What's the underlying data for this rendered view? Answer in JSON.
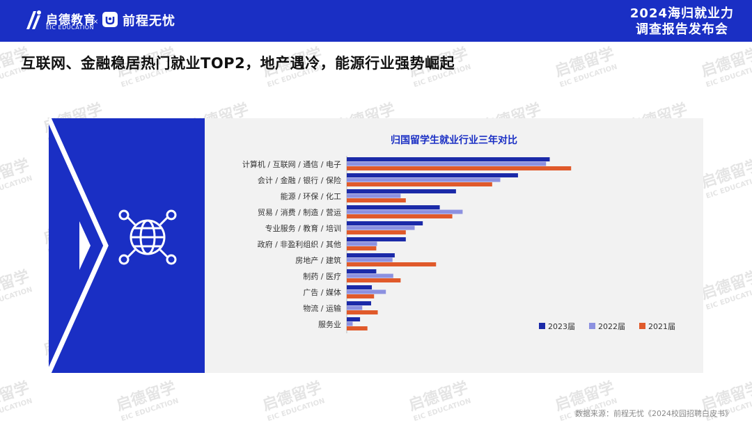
{
  "header": {
    "logo_cn": "启德教育",
    "logo_en": "EIC EDUCATION",
    "x_sep": "×",
    "partner_name": "前程无忧",
    "event_line1": "2024海归就业力",
    "event_line2": "调查报告发布会"
  },
  "headline": "互联网、金融稳居热门就业TOP2，地产遇冷，能源行业强势崛起",
  "watermark": {
    "brand": "启德留学",
    "sub": "EIC EDUCATION"
  },
  "icon": "globe-network-icon",
  "colors": {
    "brand_blue": "#1a2fc4",
    "series_2023": "#1b2aa8",
    "series_2022": "#8c91e0",
    "series_2021": "#e05a2b"
  },
  "chart_data": {
    "type": "bar",
    "orientation": "horizontal",
    "title": "归国留学生就业行业三年对比",
    "categories": [
      "计算机 / 互联网 / 通信 / 电子",
      "会计 / 金融 / 银行 / 保险",
      "能源 / 环保 / 化工",
      "贸易 / 消费 / 制造 / 营运",
      "专业服务 / 教育 / 培训",
      "政府 / 非盈利组织 / 其他",
      "房地产 / 建筑",
      "制药 / 医疗",
      "广告 / 媒体",
      "物流 / 运输",
      "服务业"
    ],
    "series": [
      {
        "name": "2023届",
        "values": [
          27.5,
          23.2,
          14.8,
          12.6,
          10.3,
          8.0,
          6.5,
          4.0,
          3.4,
          3.3,
          1.8
        ]
      },
      {
        "name": "2022届",
        "values": [
          27.0,
          20.8,
          7.3,
          15.7,
          9.2,
          4.1,
          6.2,
          6.3,
          5.3,
          2.1,
          0.8
        ]
      },
      {
        "name": "2021届",
        "values": [
          30.4,
          19.7,
          8.0,
          14.3,
          8.0,
          4.0,
          12.1,
          7.3,
          3.7,
          4.2,
          2.8
        ]
      }
    ],
    "legend_position": "bottom-right",
    "grid": false
  },
  "source": "数据来源：前程无忧《2024校园招聘白皮书》"
}
